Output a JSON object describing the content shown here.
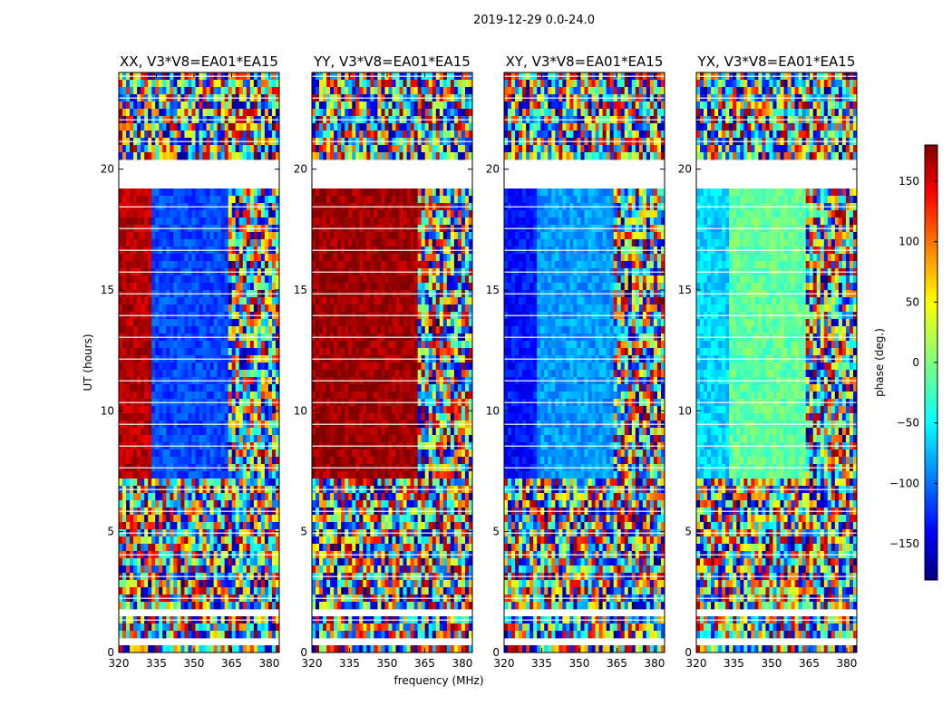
{
  "figure_title": "2019-12-29 0.0-24.0",
  "chart_data": {
    "type": "heatmap",
    "title": "2019-12-29 0.0-24.0",
    "xlabel": "frequency (MHz)",
    "ylabel": "UT (hours)",
    "xlim": [
      320,
      384
    ],
    "ylim": [
      0,
      24
    ],
    "xticks": [
      320,
      335,
      350,
      365,
      380
    ],
    "yticks": [
      0,
      5,
      10,
      15,
      20
    ],
    "colorbar": {
      "label": "phase (deg.)",
      "range": [
        -180,
        180
      ],
      "ticks": [
        150,
        100,
        50,
        0,
        -50,
        -100,
        -150
      ],
      "tick_labels": [
        "150",
        "100",
        "50",
        "0",
        "−50",
        "−100",
        "−150"
      ],
      "colormap": "jet"
    },
    "data_gaps_hours": [
      [
        19.3,
        20.3
      ],
      [
        7.1,
        7.25
      ],
      [
        0.3,
        0.45
      ],
      [
        1.6,
        1.75
      ],
      [
        22.5,
        22.6
      ]
    ],
    "panels": [
      {
        "title": "XX, V3*V8=EA01*EA15",
        "coherent_band_mhz": [
          320,
          363
        ],
        "phase_low_band_deg": 160,
        "phase_high_band_deg": -110
      },
      {
        "title": "YY, V3*V8=EA01*EA15",
        "coherent_band_mhz": [
          320,
          362
        ],
        "phase_low_band_deg": 170,
        "phase_high_band_deg": 170
      },
      {
        "title": "XY, V3*V8=EA01*EA15",
        "coherent_band_mhz": [
          320,
          363
        ],
        "phase_low_band_deg": -130,
        "phase_high_band_deg": -80
      },
      {
        "title": "YX, V3*V8=EA01*EA15",
        "coherent_band_mhz": [
          320,
          363
        ],
        "phase_low_band_deg": -60,
        "phase_high_band_deg": -10
      }
    ]
  },
  "colors": {
    "jet": [
      "#00007f",
      "#0000ff",
      "#007fff",
      "#00ffff",
      "#7fff7f",
      "#ffff00",
      "#ff7f00",
      "#ff0000",
      "#7f0000"
    ]
  }
}
